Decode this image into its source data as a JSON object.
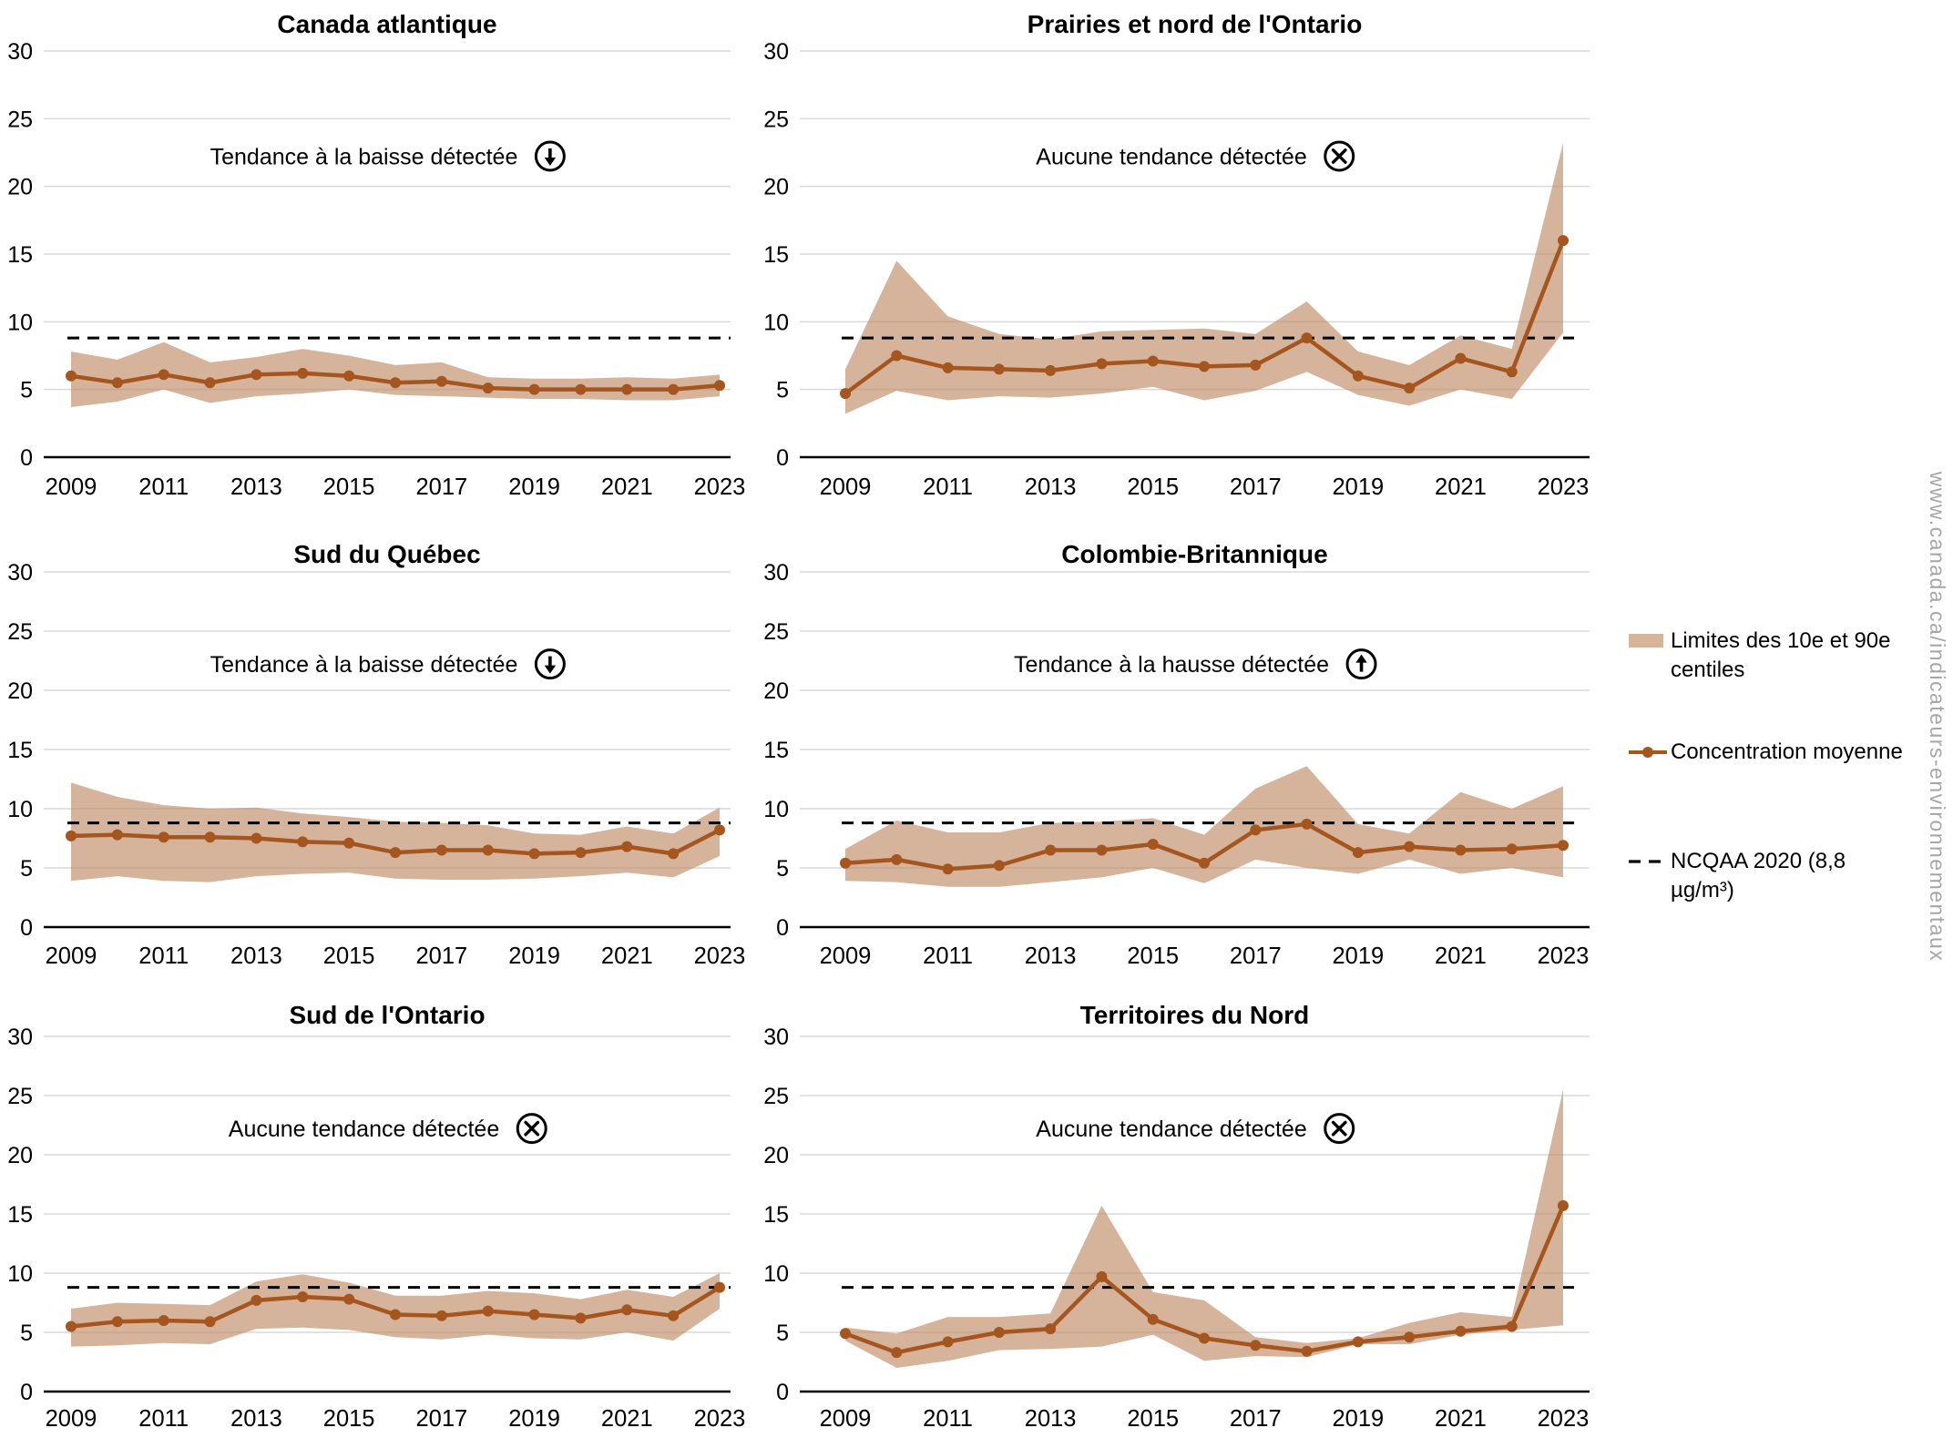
{
  "page": {
    "watermark": "www.canada.ca/indicateurs-environnementaux"
  },
  "colors": {
    "band": "#C08C66",
    "band_opacity": 0.65,
    "band_flat": "#D8B49C",
    "line": "#A5551E",
    "grid": "#D9D9D9",
    "axis": "#000000",
    "reference": "#000000",
    "text": "#000000",
    "watermark": "#A6A6A6"
  },
  "legend": {
    "band_label": "Limites des 10e et 90e centiles",
    "mean_label": "Concentration moyenne",
    "standard_label": "NCQAA 2020 (8,8 µg/m³)"
  },
  "chart_data": [
    {
      "type": "line",
      "title": "Canada atlantique",
      "annotation": {
        "label": "Tendance à la baisse détectée",
        "icon": "arrow-down-circle"
      },
      "x": [
        2009,
        2010,
        2011,
        2012,
        2013,
        2014,
        2015,
        2016,
        2017,
        2018,
        2019,
        2020,
        2021,
        2022,
        2023
      ],
      "x_tick_labels": [
        2009,
        2011,
        2013,
        2015,
        2017,
        2019,
        2021,
        2023
      ],
      "ylim": [
        0,
        30
      ],
      "y_ticks": [
        0,
        5,
        10,
        15,
        20,
        25,
        30
      ],
      "ylabel": "",
      "grid": true,
      "reference_line": {
        "label": "NCQAA 2020 (8,8 µg/m³)",
        "value": 8.8
      },
      "series": [
        {
          "name": "Concentration moyenne",
          "values": [
            6.0,
            5.5,
            6.1,
            5.5,
            6.1,
            6.2,
            6.0,
            5.5,
            5.6,
            5.1,
            5.0,
            5.0,
            5.0,
            5.0,
            5.3
          ]
        },
        {
          "name": "Limite du 90e centile",
          "values": [
            7.8,
            7.2,
            8.5,
            7.0,
            7.4,
            8.0,
            7.5,
            6.8,
            7.0,
            5.9,
            5.8,
            5.8,
            5.9,
            5.8,
            6.1
          ]
        },
        {
          "name": "Limite du 10e centile",
          "values": [
            3.7,
            4.1,
            5.0,
            4.0,
            4.5,
            4.7,
            5.0,
            4.6,
            4.5,
            4.4,
            4.3,
            4.3,
            4.2,
            4.2,
            4.5
          ]
        }
      ]
    },
    {
      "type": "line",
      "title": "Prairies et nord de l'Ontario",
      "annotation": {
        "label": "Aucune tendance détectée",
        "icon": "x-circle"
      },
      "x": [
        2009,
        2010,
        2011,
        2012,
        2013,
        2014,
        2015,
        2016,
        2017,
        2018,
        2019,
        2020,
        2021,
        2022,
        2023
      ],
      "x_tick_labels": [
        2009,
        2011,
        2013,
        2015,
        2017,
        2019,
        2021,
        2023
      ],
      "ylim": [
        0,
        30
      ],
      "y_ticks": [
        0,
        5,
        10,
        15,
        20,
        25,
        30
      ],
      "ylabel": "",
      "grid": true,
      "reference_line": {
        "label": "NCQAA 2020 (8,8 µg/m³)",
        "value": 8.8
      },
      "series": [
        {
          "name": "Concentration moyenne",
          "values": [
            4.7,
            7.5,
            6.6,
            6.5,
            6.4,
            6.9,
            7.1,
            6.7,
            6.8,
            8.8,
            6.0,
            5.1,
            7.3,
            6.3,
            16.0
          ]
        },
        {
          "name": "Limite du 90e centile",
          "values": [
            6.5,
            14.5,
            10.4,
            9.1,
            8.7,
            9.3,
            9.4,
            9.5,
            9.1,
            11.5,
            7.8,
            6.8,
            9.0,
            8.0,
            23.2
          ]
        },
        {
          "name": "Limite du 10e centile",
          "values": [
            3.2,
            4.9,
            4.2,
            4.5,
            4.4,
            4.7,
            5.2,
            4.2,
            4.9,
            6.3,
            4.6,
            3.8,
            5.0,
            4.3,
            9.2
          ]
        }
      ]
    },
    {
      "type": "line",
      "title": "Sud du Québec",
      "annotation": {
        "label": "Tendance à la baisse détectée",
        "icon": "arrow-down-circle"
      },
      "x": [
        2009,
        2010,
        2011,
        2012,
        2013,
        2014,
        2015,
        2016,
        2017,
        2018,
        2019,
        2020,
        2021,
        2022,
        2023
      ],
      "x_tick_labels": [
        2009,
        2011,
        2013,
        2015,
        2017,
        2019,
        2021,
        2023
      ],
      "ylim": [
        0,
        30
      ],
      "y_ticks": [
        0,
        5,
        10,
        15,
        20,
        25,
        30
      ],
      "ylabel": "",
      "grid": true,
      "reference_line": {
        "label": "NCQAA 2020 (8,8 µg/m³)",
        "value": 8.8
      },
      "series": [
        {
          "name": "Concentration moyenne",
          "values": [
            7.7,
            7.8,
            7.6,
            7.6,
            7.5,
            7.2,
            7.1,
            6.3,
            6.5,
            6.5,
            6.2,
            6.3,
            6.8,
            6.2,
            8.2
          ]
        },
        {
          "name": "Limite du 90e centile",
          "values": [
            12.2,
            11.0,
            10.3,
            10.0,
            10.1,
            9.6,
            9.3,
            8.9,
            8.8,
            8.6,
            7.9,
            7.8,
            8.5,
            7.9,
            10.1
          ]
        },
        {
          "name": "Limite du 10e centile",
          "values": [
            3.9,
            4.3,
            3.9,
            3.8,
            4.3,
            4.5,
            4.6,
            4.1,
            4.0,
            4.0,
            4.1,
            4.3,
            4.6,
            4.2,
            6.0
          ]
        }
      ]
    },
    {
      "type": "line",
      "title": "Colombie-Britannique",
      "annotation": {
        "label": "Tendance à la hausse détectée",
        "icon": "arrow-up-circle"
      },
      "x": [
        2009,
        2010,
        2011,
        2012,
        2013,
        2014,
        2015,
        2016,
        2017,
        2018,
        2019,
        2020,
        2021,
        2022,
        2023
      ],
      "x_tick_labels": [
        2009,
        2011,
        2013,
        2015,
        2017,
        2019,
        2021,
        2023
      ],
      "ylim": [
        0,
        30
      ],
      "y_ticks": [
        0,
        5,
        10,
        15,
        20,
        25,
        30
      ],
      "ylabel": "",
      "grid": true,
      "reference_line": {
        "label": "NCQAA 2020 (8,8 µg/m³)",
        "value": 8.8
      },
      "series": [
        {
          "name": "Concentration moyenne",
          "values": [
            5.4,
            5.7,
            4.9,
            5.2,
            6.5,
            6.5,
            7.0,
            5.4,
            8.2,
            8.7,
            6.3,
            6.8,
            6.5,
            6.6,
            6.9
          ]
        },
        {
          "name": "Limite du 90e centile",
          "values": [
            6.6,
            9.0,
            8.0,
            8.0,
            8.8,
            8.9,
            9.2,
            7.8,
            11.7,
            13.6,
            8.7,
            7.9,
            11.4,
            10.0,
            11.9
          ]
        },
        {
          "name": "Limite du 10e centile",
          "values": [
            3.9,
            3.8,
            3.4,
            3.4,
            3.8,
            4.2,
            5.0,
            3.7,
            5.7,
            5.0,
            4.5,
            5.7,
            4.5,
            5.0,
            4.2
          ]
        }
      ]
    },
    {
      "type": "line",
      "title": "Sud de l'Ontario",
      "annotation": {
        "label": "Aucune tendance détectée",
        "icon": "x-circle"
      },
      "x": [
        2009,
        2010,
        2011,
        2012,
        2013,
        2014,
        2015,
        2016,
        2017,
        2018,
        2019,
        2020,
        2021,
        2022,
        2023
      ],
      "x_tick_labels": [
        2009,
        2011,
        2013,
        2015,
        2017,
        2019,
        2021,
        2023
      ],
      "ylim": [
        0,
        30
      ],
      "y_ticks": [
        0,
        5,
        10,
        15,
        20,
        25,
        30
      ],
      "ylabel": "",
      "grid": true,
      "reference_line": {
        "label": "NCQAA 2020 (8,8 µg/m³)",
        "value": 8.8
      },
      "series": [
        {
          "name": "Concentration moyenne",
          "values": [
            5.5,
            5.9,
            6.0,
            5.9,
            7.7,
            8.0,
            7.8,
            6.5,
            6.4,
            6.8,
            6.5,
            6.2,
            6.9,
            6.4,
            8.8
          ]
        },
        {
          "name": "Limite du 90e centile",
          "values": [
            7.0,
            7.5,
            7.4,
            7.3,
            9.3,
            9.9,
            9.2,
            8.1,
            8.1,
            8.5,
            8.3,
            7.8,
            8.6,
            8.0,
            10.0
          ]
        },
        {
          "name": "Limite du 10e centile",
          "values": [
            3.8,
            3.9,
            4.1,
            4.0,
            5.3,
            5.4,
            5.2,
            4.6,
            4.4,
            4.8,
            4.5,
            4.4,
            5.0,
            4.3,
            7.0
          ]
        }
      ]
    },
    {
      "type": "line",
      "title": "Territoires du Nord",
      "annotation": {
        "label": "Aucune tendance détectée",
        "icon": "x-circle"
      },
      "x": [
        2009,
        2010,
        2011,
        2012,
        2013,
        2014,
        2015,
        2016,
        2017,
        2018,
        2019,
        2020,
        2021,
        2022,
        2023
      ],
      "x_tick_labels": [
        2009,
        2011,
        2013,
        2015,
        2017,
        2019,
        2021,
        2023
      ],
      "ylim": [
        0,
        30
      ],
      "y_ticks": [
        0,
        5,
        10,
        15,
        20,
        25,
        30
      ],
      "ylabel": "",
      "grid": true,
      "reference_line": {
        "label": "NCQAA 2020 (8,8 µg/m³)",
        "value": 8.8
      },
      "series": [
        {
          "name": "Concentration moyenne",
          "values": [
            4.9,
            3.3,
            4.2,
            5.0,
            5.3,
            9.7,
            6.1,
            4.5,
            3.9,
            3.4,
            4.2,
            4.6,
            5.1,
            5.5,
            15.7
          ]
        },
        {
          "name": "Limite du 90e centile",
          "values": [
            5.4,
            4.9,
            6.3,
            6.3,
            6.6,
            15.7,
            8.4,
            7.7,
            4.6,
            4.1,
            4.5,
            5.8,
            6.7,
            6.3,
            25.5
          ]
        },
        {
          "name": "Limite du 10e centile",
          "values": [
            4.3,
            2.0,
            2.6,
            3.5,
            3.6,
            3.8,
            4.8,
            2.6,
            3.0,
            2.9,
            4.0,
            4.0,
            4.8,
            5.2,
            5.6
          ]
        }
      ]
    }
  ]
}
